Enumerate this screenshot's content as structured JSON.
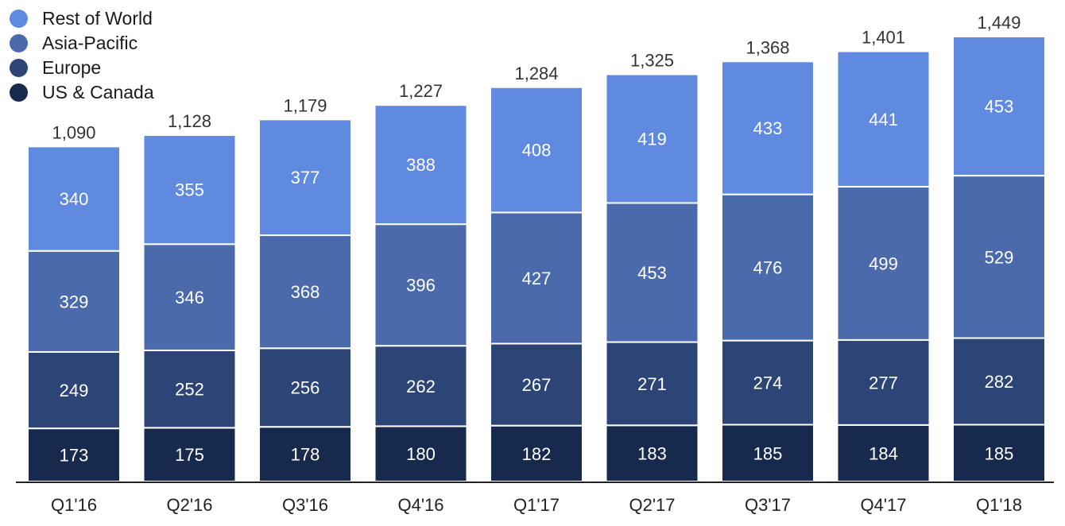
{
  "chart_data": {
    "type": "bar",
    "stacked": true,
    "categories": [
      "Q1'16",
      "Q2'16",
      "Q3'16",
      "Q4'16",
      "Q1'17",
      "Q2'17",
      "Q3'17",
      "Q4'17",
      "Q1'18"
    ],
    "series": [
      {
        "name": "US & Canada",
        "color": "#172a4e",
        "values": [
          173,
          175,
          178,
          180,
          182,
          183,
          185,
          184,
          185
        ]
      },
      {
        "name": "Europe",
        "color": "#2c4576",
        "values": [
          249,
          252,
          256,
          262,
          267,
          271,
          274,
          277,
          282
        ]
      },
      {
        "name": "Asia-Pacific",
        "color": "#4a6aab",
        "values": [
          329,
          346,
          368,
          396,
          427,
          453,
          476,
          499,
          529
        ]
      },
      {
        "name": "Rest of World",
        "color": "#5f8ae0",
        "values": [
          340,
          355,
          377,
          388,
          408,
          419,
          433,
          441,
          453
        ]
      }
    ],
    "totals": [
      "1,090",
      "1,128",
      "1,179",
      "1,227",
      "1,284",
      "1,325",
      "1,368",
      "1,401",
      "1,449"
    ],
    "ylim": [
      0,
      1449
    ],
    "legend_position": "top-left",
    "legend_order": [
      "Rest of World",
      "Asia-Pacific",
      "Europe",
      "US & Canada"
    ],
    "grid": false
  }
}
